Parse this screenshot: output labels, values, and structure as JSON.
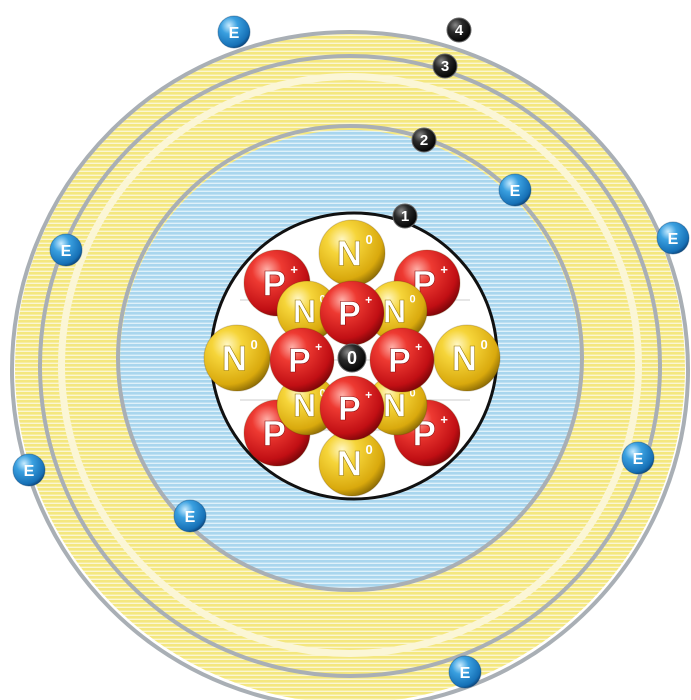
{
  "shell_labels": [
    "0",
    "1",
    "2",
    "3",
    "4"
  ],
  "particles": {
    "proton_symbol": "P",
    "proton_charge": "+",
    "neutron_symbol": "N",
    "neutron_charge": "0",
    "electron_symbol": "E"
  },
  "nucleus": {
    "outer_ring": [
      "N",
      "P",
      "P",
      "N",
      "P",
      "N",
      "P",
      "N"
    ],
    "inner_ring": [
      "N",
      "N",
      "N",
      "N"
    ],
    "cross": [
      "P",
      "P",
      "P",
      "P"
    ]
  },
  "electrons_per_shell": [
    2,
    2,
    2,
    2
  ],
  "colors": {
    "proton": "#d7151a",
    "neutron": "#e6bc12",
    "electron": "#1f83c9",
    "shell_blue": "#b8dcef",
    "shell_yellow": "#f5ea9c",
    "orbit": "#a7adb3",
    "label_disc": "#151515"
  }
}
